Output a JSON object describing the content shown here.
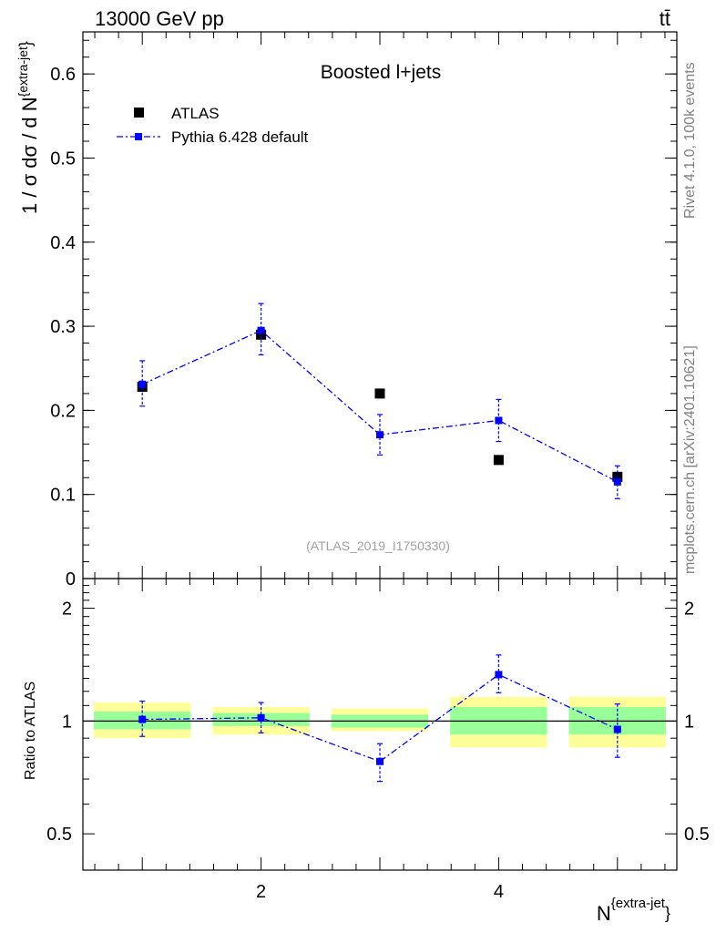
{
  "header": {
    "energy_label": "13000 GeV pp",
    "process_label": "tt̄"
  },
  "side_text": {
    "rivet": "Rivet 4.1.0,  100k events",
    "mcplots": "mcplots.cern.ch [arXiv:2401.10621]"
  },
  "main_plot": {
    "title": "Boosted l+jets",
    "watermark": "(ATLAS_2019_I1750330)",
    "ylabel_main": "1 / σ dσ / d N",
    "ylabel_sup": "{extra-jet",
    "ylabel_brace": "}"
  },
  "ratio_plot": {
    "ylabel": "Ratio to ATLAS"
  },
  "x_axis": {
    "label_main": "N",
    "label_sup": "{extra-jet",
    "label_brace": "}"
  },
  "colors": {
    "data": "#000000",
    "mc": "#0000ff",
    "band_inner": "#99ff99",
    "band_outer": "#ffff99"
  },
  "chart_data": [
    {
      "type": "scatter",
      "title": "Boosted l+jets",
      "xlabel": "N^{extra-jet}",
      "ylabel": "1 / σ dσ / d N^{extra-jet}",
      "xlim": [
        0.5,
        5.5
      ],
      "ylim": [
        0,
        0.65
      ],
      "yticks": [
        0,
        0.1,
        0.2,
        0.3,
        0.4,
        0.5,
        0.6
      ],
      "ytick_labels": [
        "0",
        "0.1",
        "0.2",
        "0.3",
        "0.4",
        "0.5",
        "0.6"
      ],
      "legend": [
        "ATLAS",
        "Pythia 6.428 default"
      ],
      "legend_position": "top-left",
      "series": [
        {
          "name": "ATLAS",
          "x": [
            1,
            2,
            3,
            4,
            5
          ],
          "y": [
            0.228,
            0.29,
            0.22,
            0.141,
            0.121
          ]
        },
        {
          "name": "Pythia 6.428 default",
          "x": [
            1,
            2,
            3,
            4,
            5
          ],
          "y": [
            0.231,
            0.295,
            0.171,
            0.188,
            0.115
          ],
          "err_low": [
            0.026,
            0.029,
            0.024,
            0.025,
            0.02
          ],
          "err_high": [
            0.028,
            0.032,
            0.024,
            0.025,
            0.019
          ]
        }
      ]
    },
    {
      "type": "scatter",
      "ylabel": "Ratio to ATLAS",
      "xlabel": "N^{extra-jet}",
      "xlim": [
        0.5,
        5.5
      ],
      "ylim": [
        0.4,
        2.4
      ],
      "yscale": "log",
      "yticks": [
        0.5,
        1,
        2
      ],
      "ytick_labels": [
        "0.5",
        "1",
        "2"
      ],
      "xticks": [
        2,
        4
      ],
      "xtick_labels": [
        "2",
        "4"
      ],
      "bands": [
        {
          "x0": 0.5,
          "x1": 1.5,
          "inner": [
            0.95,
            1.06
          ],
          "outer": [
            0.9,
            1.12
          ]
        },
        {
          "x0": 1.5,
          "x1": 2.5,
          "inner": [
            0.97,
            1.05
          ],
          "outer": [
            0.92,
            1.09
          ]
        },
        {
          "x0": 2.5,
          "x1": 3.5,
          "inner": [
            0.96,
            1.04
          ],
          "outer": [
            0.94,
            1.08
          ]
        },
        {
          "x0": 3.5,
          "x1": 4.5,
          "inner": [
            0.92,
            1.09
          ],
          "outer": [
            0.85,
            1.16
          ]
        },
        {
          "x0": 4.5,
          "x1": 5.5,
          "inner": [
            0.92,
            1.09
          ],
          "outer": [
            0.85,
            1.16
          ]
        }
      ],
      "series": [
        {
          "name": "Pythia 6.428 default",
          "x": [
            1,
            2,
            3,
            4,
            5
          ],
          "y": [
            1.01,
            1.02,
            0.78,
            1.33,
            0.95
          ],
          "err_low": [
            0.1,
            0.09,
            0.09,
            0.14,
            0.15
          ],
          "err_high": [
            0.12,
            0.1,
            0.09,
            0.17,
            0.16
          ]
        }
      ]
    }
  ]
}
